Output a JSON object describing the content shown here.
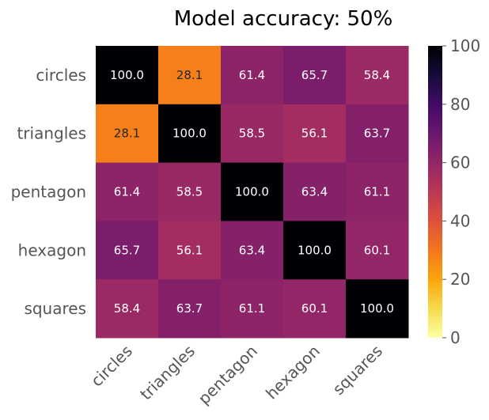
{
  "chart_data": {
    "type": "heatmap",
    "title": "Model accuracy: 50%",
    "row_labels": [
      "circles",
      "triangles",
      "pentagon",
      "hexagon",
      "squares"
    ],
    "col_labels": [
      "circles",
      "triangles",
      "pentagon",
      "hexagon",
      "squares"
    ],
    "values": [
      [
        100.0,
        28.1,
        61.4,
        65.7,
        58.4
      ],
      [
        28.1,
        100.0,
        58.5,
        56.1,
        63.7
      ],
      [
        61.4,
        58.5,
        100.0,
        63.4,
        61.1
      ],
      [
        65.7,
        56.1,
        63.4,
        100.0,
        60.1
      ],
      [
        58.4,
        63.7,
        61.1,
        60.1,
        100.0
      ]
    ],
    "value_labels": [
      [
        "100.0",
        "28.1",
        "61.4",
        "65.7",
        "58.4"
      ],
      [
        "28.1",
        "100.0",
        "58.5",
        "56.1",
        "63.7"
      ],
      [
        "61.4",
        "58.5",
        "100.0",
        "63.4",
        "61.1"
      ],
      [
        "65.7",
        "56.1",
        "63.4",
        "100.0",
        "60.1"
      ],
      [
        "58.4",
        "63.7",
        "61.1",
        "60.1",
        "100.0"
      ]
    ],
    "colorscale": "inferno_r",
    "vmin": 0,
    "vmax": 100,
    "colorbar_ticks": [
      "0",
      "20",
      "40",
      "60",
      "80",
      "100"
    ],
    "grid": false
  }
}
